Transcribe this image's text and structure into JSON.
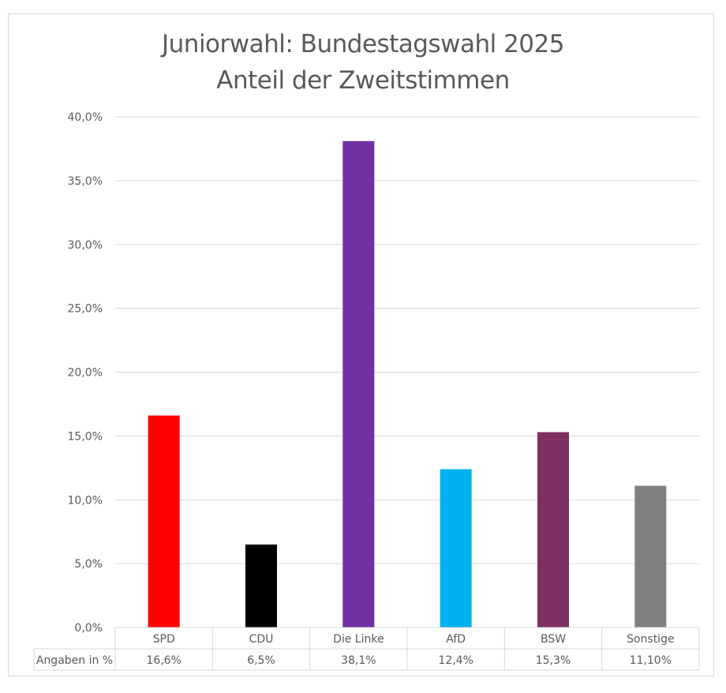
{
  "chart_data": {
    "type": "bar",
    "title": "Juniorwahl: Bundestagswahl 2025",
    "subtitle": "Anteil der Zweitstimmen",
    "xlabel": "",
    "ylabel": "",
    "categories": [
      "SPD",
      "CDU",
      "Die Linke",
      "AfD",
      "BSW",
      "Sonstige"
    ],
    "values": [
      16.6,
      6.5,
      38.1,
      12.4,
      15.3,
      11.1
    ],
    "colors": [
      "#ff0000",
      "#000000",
      "#7030a0",
      "#00b0f0",
      "#7f3060",
      "#808080"
    ],
    "ylim": [
      0,
      40
    ],
    "ytick_step": 5,
    "ytick_labels": [
      "0,0%",
      "5,0%",
      "10,0%",
      "15,0%",
      "20,0%",
      "25,0%",
      "30,0%",
      "35,0%",
      "40,0%"
    ],
    "grid": true,
    "legend": "none",
    "data_table": {
      "row_label": "Angaben in %",
      "values": [
        "16,6%",
        "6,5%",
        "38,1%",
        "12,4%",
        "15,3%",
        "11,10%"
      ]
    }
  }
}
